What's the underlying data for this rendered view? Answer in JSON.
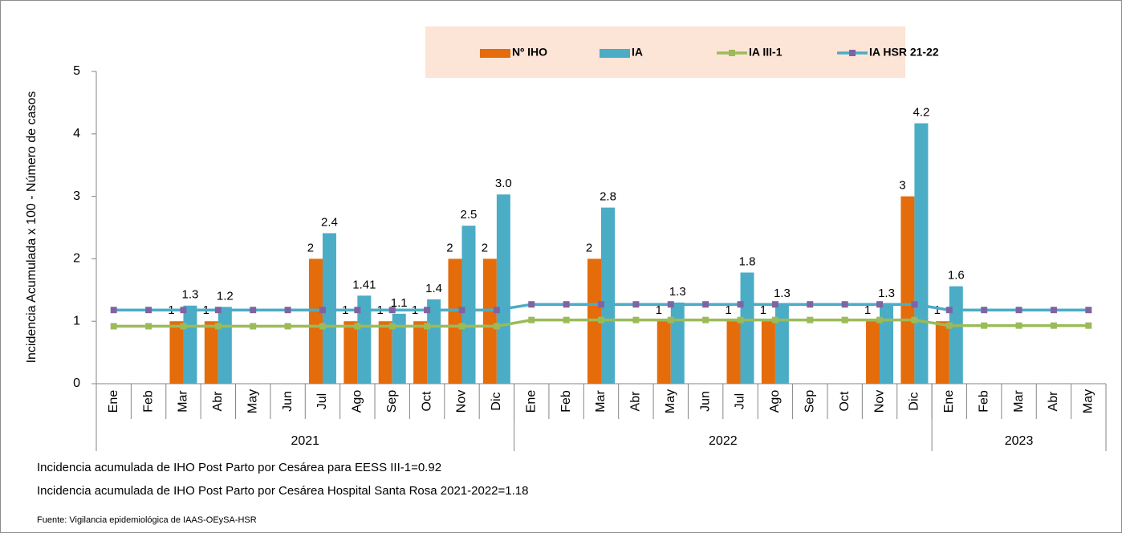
{
  "chart_data": {
    "type": "bar",
    "y_axis_label": "Incidencia Acumulada x 100 - Número de casos",
    "categories": [
      "Ene",
      "Feb",
      "Mar",
      "Abr",
      "May",
      "Jun",
      "Jul",
      "Ago",
      "Sep",
      "Oct",
      "Nov",
      "Dic",
      "Ene",
      "Feb",
      "Mar",
      "Abr",
      "May",
      "Jun",
      "Jul",
      "Ago",
      "Sep",
      "Oct",
      "Nov",
      "Dic",
      "Ene",
      "Feb",
      "Mar",
      "Abr",
      "May"
    ],
    "category_groups": [
      {
        "label": "2021",
        "size": 12
      },
      {
        "label": "2022",
        "size": 12
      },
      {
        "label": "2023",
        "size": 5
      }
    ],
    "ylim": [
      0,
      5
    ],
    "yticks": [
      0,
      1,
      2,
      3,
      4,
      5
    ],
    "legend": "top",
    "series": [
      {
        "name": "Nº IHO",
        "type": "bar",
        "color": "#e46c0a",
        "values": [
          null,
          null,
          1,
          1,
          null,
          null,
          2,
          1,
          1,
          1,
          2,
          2,
          null,
          null,
          2,
          null,
          1,
          null,
          1,
          1,
          null,
          null,
          1,
          3,
          1,
          null,
          null,
          null,
          null
        ]
      },
      {
        "name": "IA",
        "type": "bar",
        "color": "#4bacc6",
        "values": [
          null,
          null,
          1.25,
          1.23,
          null,
          null,
          2.41,
          1.41,
          1.12,
          1.35,
          2.53,
          3.03,
          null,
          null,
          2.82,
          null,
          1.3,
          null,
          1.78,
          1.27,
          null,
          null,
          1.27,
          4.17,
          1.56,
          null,
          null,
          null,
          null
        ],
        "value_labels": [
          null,
          null,
          "1.3",
          "1.2",
          null,
          null,
          "2.4",
          "1.41",
          "1.1",
          "1.4",
          "2.5",
          "3.0",
          null,
          null,
          "2.8",
          null,
          "1.3",
          null,
          "1.8",
          "1.3",
          null,
          null,
          "1.3",
          "4.2",
          "1.6",
          null,
          null,
          null,
          null
        ]
      },
      {
        "name": "IA III-1",
        "type": "line",
        "color": "#9bbb59",
        "marker_color": "#9bbb59",
        "values": [
          0.92,
          0.92,
          0.92,
          0.92,
          0.92,
          0.92,
          0.92,
          0.92,
          0.92,
          0.92,
          0.92,
          0.92,
          1.02,
          1.02,
          1.02,
          1.02,
          1.02,
          1.02,
          1.02,
          1.02,
          1.02,
          1.02,
          1.02,
          1.02,
          0.93,
          0.93,
          0.93,
          0.93,
          0.93
        ]
      },
      {
        "name": "IA HSR 21-22",
        "type": "line",
        "color": "#4bacc6",
        "marker_color": "#8064a2",
        "values": [
          1.18,
          1.18,
          1.18,
          1.18,
          1.18,
          1.18,
          1.18,
          1.18,
          1.18,
          1.18,
          1.18,
          1.18,
          1.27,
          1.27,
          1.27,
          1.27,
          1.27,
          1.27,
          1.27,
          1.27,
          1.27,
          1.27,
          1.27,
          1.27,
          1.18,
          1.18,
          1.18,
          1.18,
          1.18
        ]
      }
    ],
    "notes": [
      "Incidencia acumulada de IHO Post Parto por Cesárea para EESS III-1=0.92",
      "Incidencia acumulada de IHO Post Parto por Cesárea Hospital Santa Rosa 2021-2022=1.18"
    ],
    "source": "Fuente: Vigilancia epidemiológica de IAAS-OEySA-HSR"
  }
}
